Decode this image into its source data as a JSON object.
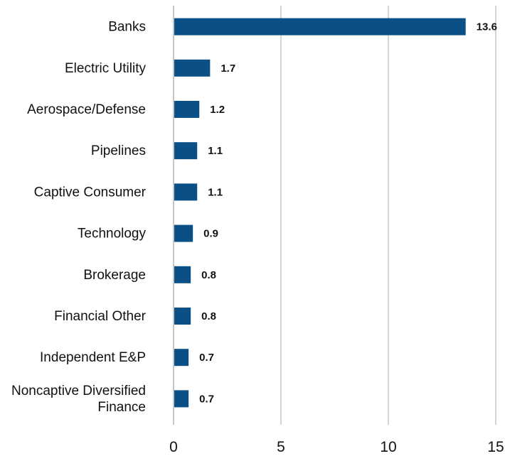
{
  "colors": {
    "bar": "#0a4f86",
    "grid": "#a8a8a8",
    "axis": "#8c8c8c",
    "text": "#111111"
  },
  "chart_data": {
    "type": "bar",
    "orientation": "horizontal",
    "title": "",
    "xlabel": "",
    "ylabel": "",
    "categories": [
      "Banks",
      "Electric Utility",
      "Aerospace/Defense",
      "Pipelines",
      "Captive Consumer",
      "Technology",
      "Brokerage",
      "Financial Other",
      "Independent E&P",
      "Noncaptive Diversified Finance"
    ],
    "category_lines": [
      [
        "Banks"
      ],
      [
        "Electric Utility"
      ],
      [
        "Aerospace/Defense"
      ],
      [
        "Pipelines"
      ],
      [
        "Captive Consumer"
      ],
      [
        "Technology"
      ],
      [
        "Brokerage"
      ],
      [
        "Financial Other"
      ],
      [
        "Independent E&P"
      ],
      [
        "Noncaptive Diversified",
        "Finance"
      ]
    ],
    "values": [
      13.6,
      1.7,
      1.2,
      1.1,
      1.1,
      0.9,
      0.8,
      0.8,
      0.7,
      0.7
    ],
    "value_labels": [
      "13.6",
      "1.7",
      "1.2",
      "1.1",
      "1.1",
      "0.9",
      "0.8",
      "0.8",
      "0.7",
      "0.7"
    ],
    "xlim": [
      0,
      15
    ],
    "xticks": [
      0,
      5,
      10,
      15
    ],
    "xtick_labels": [
      "0",
      "5",
      "10",
      "15"
    ],
    "grid": true,
    "legend": "none"
  }
}
